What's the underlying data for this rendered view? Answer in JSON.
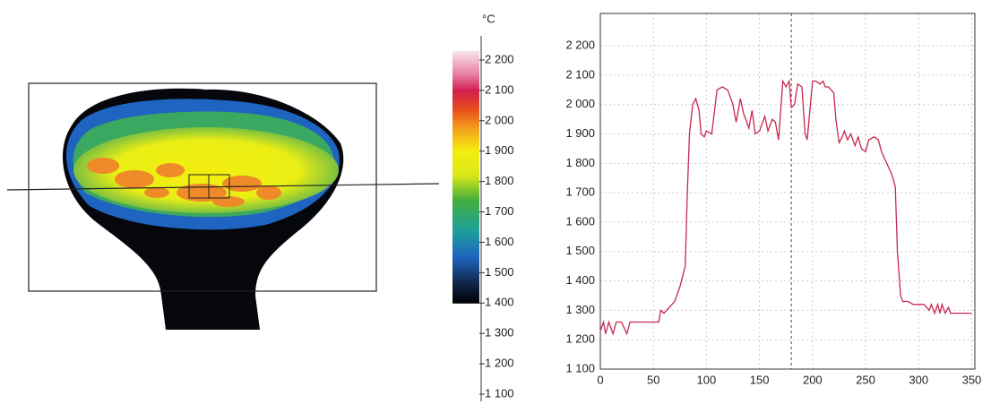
{
  "chart_data": [
    {
      "type": "colorbar",
      "unit": "°C",
      "ylim": [
        1100,
        2200
      ],
      "yticks": [
        {
          "value": 2200,
          "label": "2 200"
        },
        {
          "value": 2100,
          "label": "2 100"
        },
        {
          "value": 2000,
          "label": "2 000"
        },
        {
          "value": 1900,
          "label": "1 900"
        },
        {
          "value": 1800,
          "label": "1 800"
        },
        {
          "value": 1700,
          "label": "1 700"
        },
        {
          "value": 1600,
          "label": "1 600"
        },
        {
          "value": 1500,
          "label": "1 500"
        },
        {
          "value": 1400,
          "label": "1 400"
        },
        {
          "value": 1300,
          "label": "1 300"
        },
        {
          "value": 1200,
          "label": "1 200"
        },
        {
          "value": 1100,
          "label": "1 100"
        }
      ],
      "color_stops": [
        {
          "value": 2230,
          "color": "#f8e4ee"
        },
        {
          "value": 2150,
          "color": "#e87aa0"
        },
        {
          "value": 2100,
          "color": "#d0204e"
        },
        {
          "value": 2040,
          "color": "#e84a1e"
        },
        {
          "value": 1980,
          "color": "#f39a1c"
        },
        {
          "value": 1900,
          "color": "#f4ee10"
        },
        {
          "value": 1820,
          "color": "#d8e818"
        },
        {
          "value": 1740,
          "color": "#44ae3c"
        },
        {
          "value": 1640,
          "color": "#1fa09a"
        },
        {
          "value": 1550,
          "color": "#1e64c0"
        },
        {
          "value": 1470,
          "color": "#12284e"
        },
        {
          "value": 1400,
          "color": "#000000"
        }
      ]
    },
    {
      "type": "line",
      "xlim": [
        0,
        353
      ],
      "ylim": [
        1100,
        2310
      ],
      "xticks": [
        0,
        50,
        100,
        150,
        200,
        250,
        300,
        350
      ],
      "yticks": [
        {
          "value": 1100,
          "label": "1 100"
        },
        {
          "value": 1200,
          "label": "1 200"
        },
        {
          "value": 1300,
          "label": "1 300"
        },
        {
          "value": 1400,
          "label": "1 400"
        },
        {
          "value": 1500,
          "label": "1 500"
        },
        {
          "value": 1600,
          "label": "1 600"
        },
        {
          "value": 1700,
          "label": "1 700"
        },
        {
          "value": 1800,
          "label": "1 800"
        },
        {
          "value": 1900,
          "label": "1 900"
        },
        {
          "value": 2000,
          "label": "2 000"
        },
        {
          "value": 2100,
          "label": "2 100"
        },
        {
          "value": 2200,
          "label": "2 200"
        }
      ],
      "grid": true,
      "cursor_x": 180,
      "x": [
        0,
        3,
        5,
        8,
        12,
        15,
        20,
        25,
        28,
        40,
        55,
        57,
        60,
        65,
        70,
        75,
        80,
        82,
        84,
        87,
        90,
        93,
        95,
        98,
        100,
        105,
        110,
        115,
        120,
        125,
        128,
        132,
        135,
        140,
        143,
        146,
        150,
        155,
        158,
        162,
        165,
        168,
        172,
        175,
        178,
        180,
        183,
        186,
        190,
        193,
        195,
        198,
        200,
        203,
        207,
        210,
        212,
        215,
        220,
        222,
        225,
        228,
        230,
        233,
        236,
        240,
        243,
        246,
        250,
        253,
        258,
        262,
        265,
        270,
        275,
        278,
        280,
        283,
        285,
        290,
        295,
        300,
        305,
        310,
        312,
        315,
        318,
        320,
        322,
        325,
        328,
        330,
        333,
        340,
        345,
        350
      ],
      "series": [
        {
          "color": "#c8284e",
          "values": [
            1230,
            1260,
            1220,
            1260,
            1220,
            1260,
            1260,
            1220,
            1260,
            1260,
            1260,
            1300,
            1290,
            1310,
            1330,
            1380,
            1450,
            1700,
            1900,
            2000,
            2020,
            1980,
            1900,
            1890,
            1910,
            1900,
            2050,
            2060,
            2050,
            2000,
            1940,
            2020,
            1970,
            1920,
            1980,
            1900,
            1910,
            1960,
            1910,
            1950,
            1940,
            1880,
            2080,
            2060,
            2080,
            1990,
            2000,
            2070,
            2060,
            1900,
            1880,
            2000,
            2080,
            2080,
            2070,
            2080,
            2060,
            2060,
            2040,
            1950,
            1870,
            1890,
            1910,
            1880,
            1900,
            1860,
            1890,
            1850,
            1840,
            1880,
            1890,
            1880,
            1840,
            1800,
            1760,
            1720,
            1500,
            1350,
            1330,
            1330,
            1320,
            1320,
            1320,
            1300,
            1320,
            1290,
            1320,
            1290,
            1320,
            1290,
            1310,
            1290,
            1290,
            1290,
            1290,
            1290
          ]
        }
      ]
    }
  ]
}
